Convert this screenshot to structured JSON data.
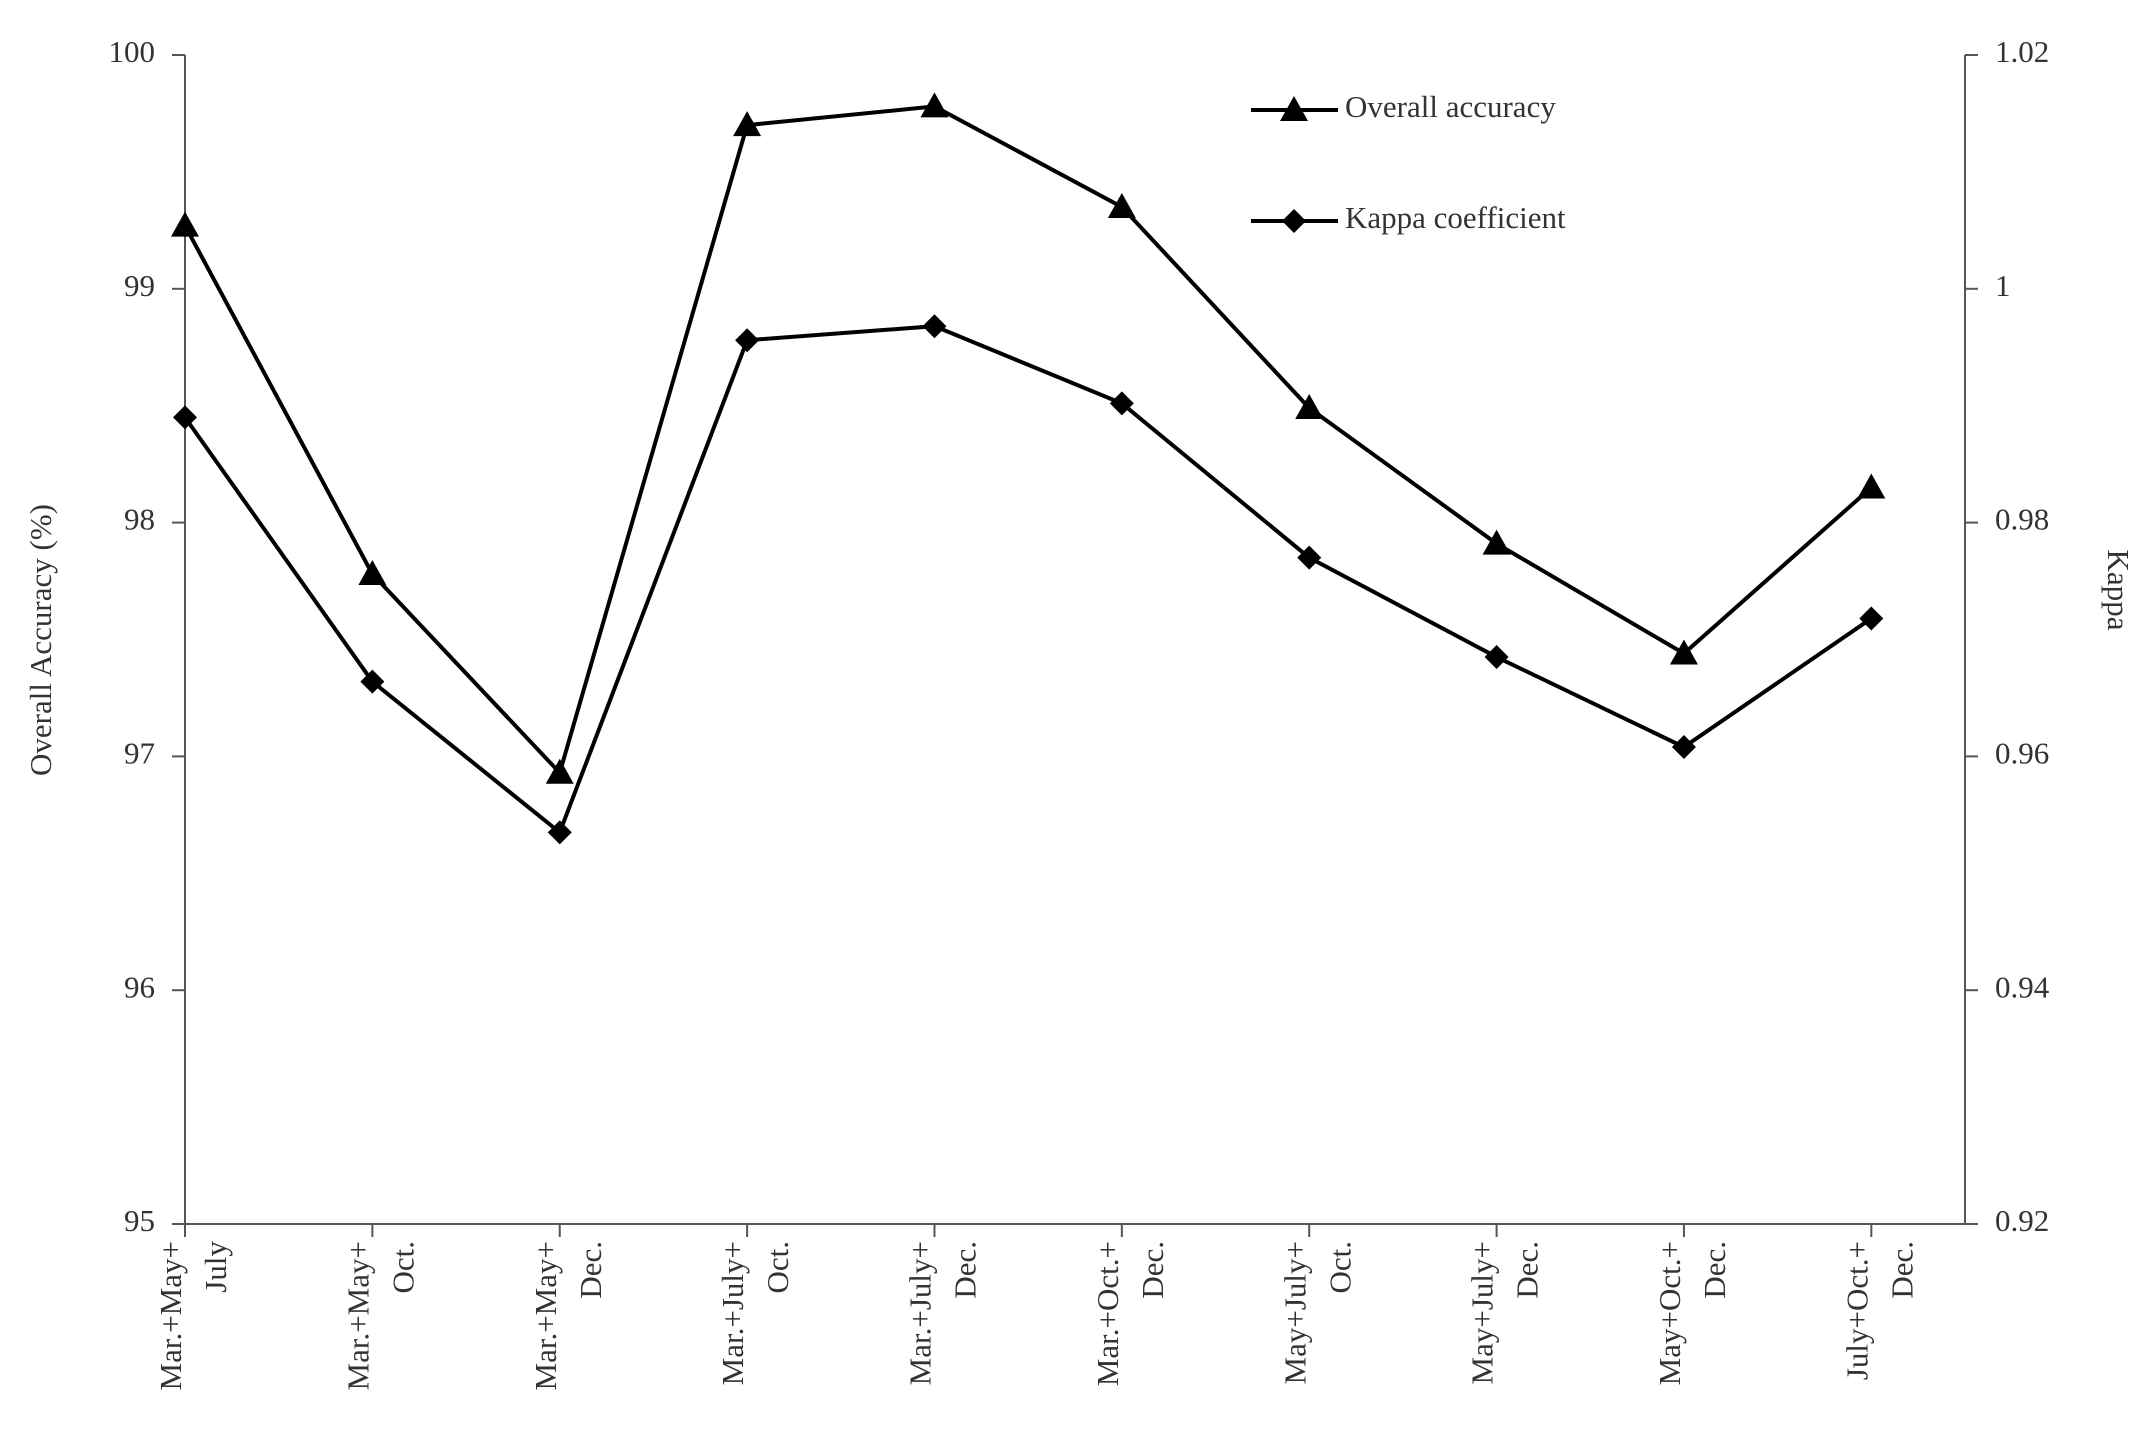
{
  "chart_data": {
    "type": "line",
    "y_label": "Overall Accuracy (%)",
    "y2_label": "Kappa",
    "categories": [
      [
        "Mar.+May+",
        "July"
      ],
      [
        "Mar.+May+",
        "Oct."
      ],
      [
        "Mar.+May+",
        "Dec."
      ],
      [
        "Mar.+July+",
        "Oct."
      ],
      [
        "Mar.+July+",
        "Dec."
      ],
      [
        "Mar.+Oct.+",
        "Dec."
      ],
      [
        "May+July+",
        "Oct."
      ],
      [
        "May+July+",
        "Dec."
      ],
      [
        "May+Oct.+",
        "Dec."
      ],
      [
        "July+Oct.+",
        "Dec."
      ]
    ],
    "series": [
      {
        "name": "Overall accuracy",
        "color": "#000000",
        "marker": "triangle",
        "values": [
          99.27,
          97.78,
          96.93,
          99.7,
          99.78,
          99.35,
          98.49,
          97.91,
          97.44,
          98.15
        ]
      },
      {
        "name": "Kappa coefficient",
        "color": "#000000",
        "marker": "diamond",
        "axis": "y2",
        "values": [
          0.989,
          0.9664,
          0.9535,
          0.9956,
          0.9968,
          0.9902,
          0.977,
          0.9685,
          0.9608,
          0.9718
        ]
      }
    ],
    "ylim": [
      95,
      100
    ],
    "yticks": [
      95,
      96,
      97,
      98,
      99,
      100
    ],
    "y2lim": [
      0.92,
      1.02
    ],
    "y2ticks": [
      0.92,
      0.94,
      0.96,
      0.98,
      1,
      1.02
    ],
    "grid": false,
    "legend": "upper right"
  }
}
